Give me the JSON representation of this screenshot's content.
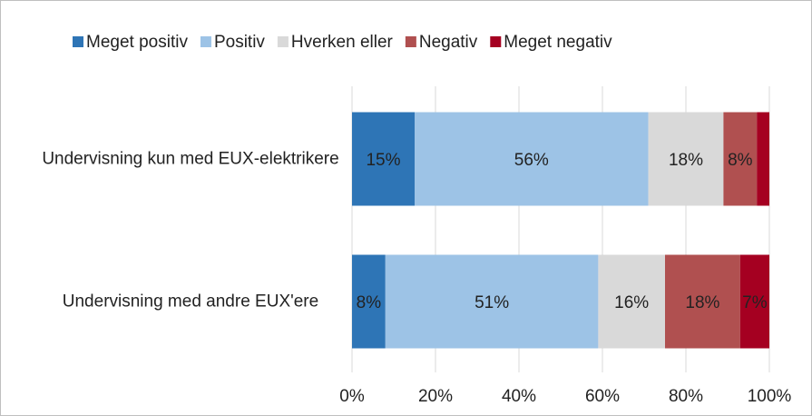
{
  "chart_data": {
    "type": "stacked-barh",
    "categories": [
      "Undervisning kun med EUX-elektrikere",
      "Undervisning med andre EUX'ere"
    ],
    "series": [
      {
        "name": "Meget positiv",
        "color": "#2e75b6",
        "values": [
          15,
          8
        ],
        "value_labels": [
          "15%",
          "8%"
        ]
      },
      {
        "name": "Positiv",
        "color": "#9dc3e6",
        "values": [
          56,
          51
        ],
        "value_labels": [
          "56%",
          "51%"
        ]
      },
      {
        "name": "Hverken eller",
        "color": "#d9d9d9",
        "values": [
          18,
          16
        ],
        "value_labels": [
          "18%",
          "16%"
        ]
      },
      {
        "name": "Negativ",
        "color": "#b05050",
        "values": [
          8,
          18
        ],
        "value_labels": [
          "8%",
          "18%"
        ]
      },
      {
        "name": "Meget negativ",
        "color": "#a50021",
        "values": [
          3,
          7
        ],
        "value_labels": [
          null,
          "7%"
        ]
      }
    ],
    "xlim": [
      0,
      100
    ],
    "xticks": [
      {
        "value": 0,
        "label": "0%"
      },
      {
        "value": 20,
        "label": "20%"
      },
      {
        "value": 40,
        "label": "40%"
      },
      {
        "value": 60,
        "label": "60%"
      },
      {
        "value": 80,
        "label": "80%"
      },
      {
        "value": 100,
        "label": "100%"
      }
    ],
    "grid": true,
    "legend": "top"
  }
}
